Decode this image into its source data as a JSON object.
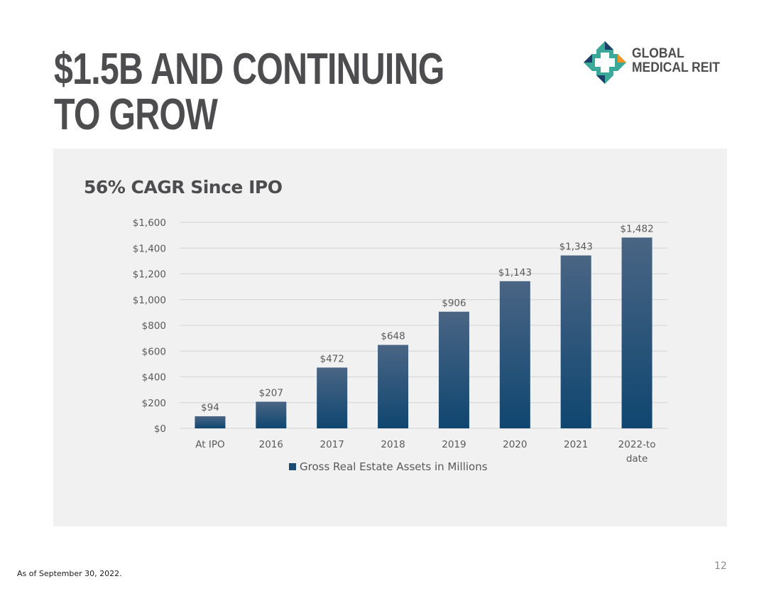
{
  "slide": {
    "title_line1": "$1.5B AND CONTINUING",
    "title_line2": "TO GROW",
    "logo": {
      "line1": "GLOBAL",
      "line2": "MEDICAL REIT",
      "colors": {
        "teal": "#3aa99a",
        "navy": "#1d3d6b",
        "orange": "#f39220"
      }
    },
    "footnote": "As of September 30, 2022.",
    "page_number": "12"
  },
  "chart_data": {
    "type": "bar",
    "title": "56% CAGR Since IPO",
    "categories": [
      "At IPO",
      "2016",
      "2017",
      "2018",
      "2019",
      "2020",
      "2021",
      "2022-to date"
    ],
    "series": [
      {
        "name": "Gross Real Estate Assets in Millions",
        "values": [
          94,
          207,
          472,
          648,
          906,
          1143,
          1343,
          1482
        ],
        "labels": [
          "$94",
          "$207",
          "$472",
          "$648",
          "$906",
          "$1,143",
          "$1,343",
          "$1,482"
        ],
        "color_top": "#4a6584",
        "color_bottom": "#0f4670"
      }
    ],
    "xlabel": "",
    "ylabel": "",
    "ylim": [
      0,
      1600
    ],
    "yticks": [
      0,
      200,
      400,
      600,
      800,
      1000,
      1200,
      1400,
      1600
    ],
    "ytick_labels": [
      "$0",
      "$200",
      "$400",
      "$600",
      "$800",
      "$1,000",
      "$1,200",
      "$1,400",
      "$1,600"
    ],
    "grid": true,
    "legend_position": "bottom"
  }
}
